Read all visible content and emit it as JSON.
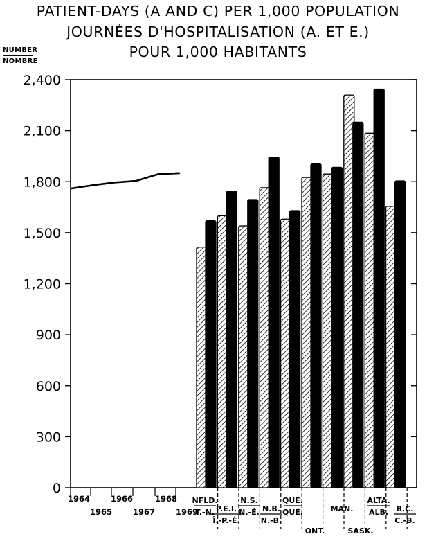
{
  "title_lines": [
    "PATIENT-DAYS (A AND C) PER 1,000 POPULATION",
    "JOURNÉES D'HOSPITALISATION (A. ET E.)",
    "POUR 1,000 HABITANTS"
  ],
  "unit_top": "NUMBER",
  "unit_bottom": "NOMBRE",
  "chart_data": {
    "type": "bar",
    "title": "PATIENT-DAYS (A AND C) PER 1,000 POPULATION / JOURNÉES D'HOSPITALISATION (A. ET E.) POUR 1,000 HABITANTS",
    "ylabel": "NUMBER / NOMBRE",
    "ylim": [
      0,
      2400
    ],
    "yticks": [
      0,
      300,
      600,
      900,
      1200,
      1500,
      1800,
      2100,
      2400
    ],
    "ytick_labels": [
      "0",
      "300",
      "600",
      "900",
      "1,200",
      "1,500",
      "1,800",
      "2,100",
      "2,400"
    ],
    "grid": false,
    "national_line": {
      "type": "line",
      "x": [
        "1964",
        "1965",
        "1966",
        "1967",
        "1968",
        "1969"
      ],
      "values": [
        1760,
        1780,
        1795,
        1805,
        1845,
        1850
      ]
    },
    "provinces": {
      "categories": [
        {
          "top": "NFLD.",
          "bottom": "T.-N."
        },
        {
          "top": "P.E.I.",
          "bottom": "Î.-P.-É."
        },
        {
          "top": "N.S.",
          "bottom": "N.-É."
        },
        {
          "top": "N.B.",
          "bottom": "N.-B."
        },
        {
          "top": "QUE.",
          "bottom": "QUÉ."
        },
        {
          "top": "ONT.",
          "bottom": ""
        },
        {
          "top": "MAN.",
          "bottom": ""
        },
        {
          "top": "SASK.",
          "bottom": ""
        },
        {
          "top": "ALTA.",
          "bottom": "ALB."
        },
        {
          "top": "B.C.",
          "bottom": "C.-B."
        }
      ],
      "series": [
        {
          "pattern": "hatched",
          "values": [
            1415,
            1600,
            1540,
            1765,
            1580,
            1825,
            1845,
            2310,
            2085,
            1655
          ]
        },
        {
          "pattern": "solid",
          "values": [
            1570,
            1745,
            1695,
            1945,
            1630,
            1905,
            1885,
            2150,
            2345,
            1805
          ]
        }
      ]
    },
    "colors": {
      "ink": "#000000",
      "paper": "#ffffff"
    }
  }
}
